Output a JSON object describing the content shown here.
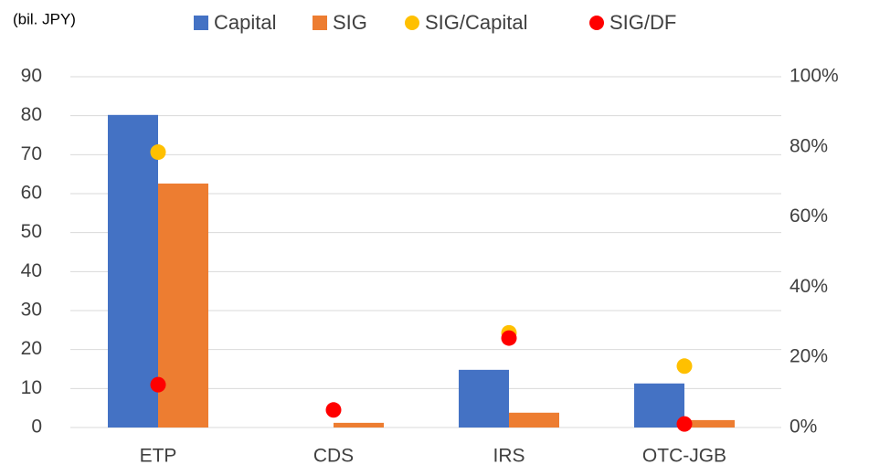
{
  "chart_data": {
    "type": "bar",
    "ylabel": "(bil. JPY)",
    "categories": [
      "ETP",
      "CDS",
      "IRS",
      "OTC-JGB"
    ],
    "series": [
      {
        "name": "Capital",
        "color": "#4472c4",
        "values": [
          80.2,
          0,
          14.8,
          11.3
        ]
      },
      {
        "name": "SIG",
        "color": "#ed7d31",
        "values": [
          62.6,
          1.2,
          3.8,
          1.9
        ]
      },
      {
        "name": "SIG/Capital",
        "color": "#ffc000",
        "type": "scatter",
        "axis": "y2",
        "values": [
          78.5,
          null,
          27,
          17.5
        ]
      },
      {
        "name": "SIG/DF",
        "color": "#ff0000",
        "type": "scatter",
        "axis": "y2",
        "values": [
          12.2,
          5,
          25.5,
          1
        ]
      }
    ],
    "ylim": [
      0,
      90
    ],
    "yticks": [
      0,
      10,
      20,
      30,
      40,
      50,
      60,
      70,
      80,
      90
    ],
    "y2lim": [
      0,
      100
    ],
    "y2ticks": [
      {
        "value": 0,
        "label": "0%"
      },
      {
        "value": 20,
        "label": "20%"
      },
      {
        "value": 40,
        "label": "40%"
      },
      {
        "value": 60,
        "label": "60%"
      },
      {
        "value": 80,
        "label": "80%"
      },
      {
        "value": 100,
        "label": "100%"
      }
    ],
    "grid": true
  }
}
